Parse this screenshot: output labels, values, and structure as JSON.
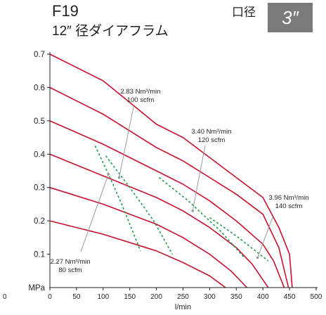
{
  "header": {
    "model": "F19",
    "subtitle": "12″ 径ダイアフラム",
    "port_label": "口径",
    "port_size": "3″"
  },
  "chart_data": {
    "type": "line",
    "xlabel": "l/min",
    "ylabel": "MPa",
    "xlim": [
      0,
      500
    ],
    "ylim": [
      0,
      0.7
    ],
    "x_ticks": [
      "0",
      "50",
      "100",
      "150",
      "200",
      "250",
      "300",
      "350",
      "400",
      "450",
      "500"
    ],
    "y_ticks": [
      "0.1",
      "0.2",
      "0.3",
      "0.4",
      "0.5",
      "0.6",
      "0.7"
    ],
    "extra_x_tick": "0",
    "grid": false,
    "colors": {
      "curve": "#c8102e",
      "air": "#1f9d48",
      "axis": "#231f20",
      "pointer": "#9a9a9a"
    },
    "series": [
      {
        "values": [
          [
            0,
            0.7
          ],
          [
            100,
            0.62
          ],
          [
            200,
            0.49
          ],
          [
            250,
            0.45
          ],
          [
            300,
            0.39
          ],
          [
            350,
            0.33
          ],
          [
            400,
            0.27
          ],
          [
            430,
            0.18
          ],
          [
            450,
            0.1
          ],
          [
            455,
            0.0
          ]
        ]
      },
      {
        "values": [
          [
            0,
            0.6
          ],
          [
            100,
            0.52
          ],
          [
            200,
            0.42
          ],
          [
            250,
            0.38
          ],
          [
            300,
            0.33
          ],
          [
            350,
            0.28
          ],
          [
            400,
            0.22
          ],
          [
            430,
            0.12
          ],
          [
            448,
            0.0
          ]
        ]
      },
      {
        "values": [
          [
            0,
            0.5
          ],
          [
            100,
            0.43
          ],
          [
            200,
            0.35
          ],
          [
            250,
            0.31
          ],
          [
            300,
            0.26
          ],
          [
            350,
            0.2
          ],
          [
            400,
            0.13
          ],
          [
            420,
            0.08
          ],
          [
            440,
            0.0
          ]
        ]
      },
      {
        "values": [
          [
            0,
            0.4
          ],
          [
            100,
            0.335
          ],
          [
            200,
            0.27
          ],
          [
            250,
            0.23
          ],
          [
            300,
            0.18
          ],
          [
            350,
            0.12
          ],
          [
            380,
            0.07
          ],
          [
            410,
            0.0
          ]
        ]
      },
      {
        "values": [
          [
            0,
            0.3
          ],
          [
            100,
            0.25
          ],
          [
            200,
            0.19
          ],
          [
            250,
            0.15
          ],
          [
            300,
            0.1
          ],
          [
            340,
            0.05
          ],
          [
            370,
            0.0
          ]
        ]
      },
      {
        "values": [
          [
            0,
            0.2
          ],
          [
            100,
            0.16
          ],
          [
            200,
            0.11
          ],
          [
            250,
            0.075
          ],
          [
            300,
            0.035
          ],
          [
            330,
            0.0
          ]
        ]
      }
    ],
    "air_consumption": [
      {
        "label_line1": "2.27 Nm³/min",
        "label_line2": "80 scfm",
        "values": [
          [
            85,
            0.425
          ],
          [
            110,
            0.34
          ],
          [
            135,
            0.25
          ],
          [
            170,
            0.11
          ]
        ]
      },
      {
        "label_line1": "2.83 Nm³/min",
        "label_line2": "100 scfm",
        "values": [
          [
            105,
            0.395
          ],
          [
            150,
            0.3
          ],
          [
            195,
            0.2
          ],
          [
            230,
            0.1
          ]
        ]
      },
      {
        "label_line1": "3.40 Nm³/min",
        "label_line2": "120 scfm",
        "values": [
          [
            205,
            0.33
          ],
          [
            260,
            0.26
          ],
          [
            320,
            0.17
          ],
          [
            365,
            0.09
          ]
        ]
      },
      {
        "label_line1": "3.96 Nm³/min",
        "label_line2": "140 scfm",
        "values": [
          [
            300,
            0.21
          ],
          [
            350,
            0.155
          ],
          [
            410,
            0.08
          ]
        ]
      }
    ]
  }
}
